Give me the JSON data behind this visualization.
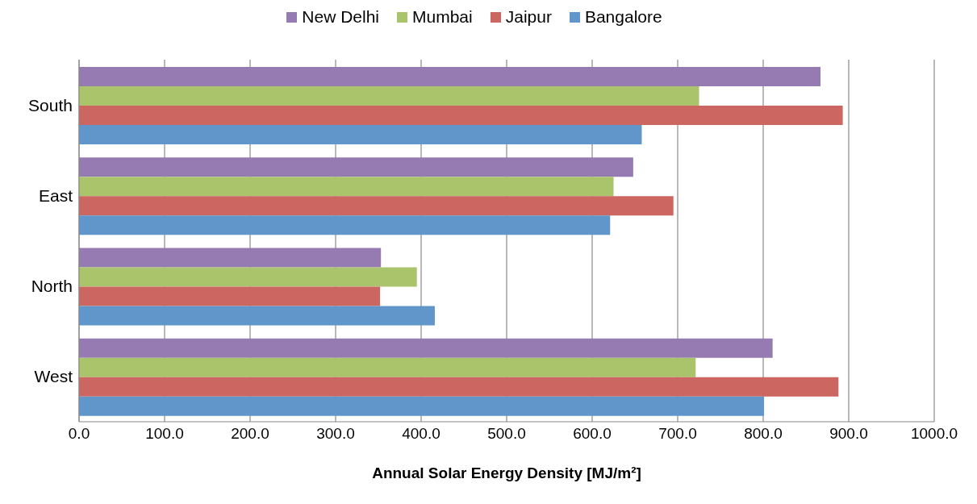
{
  "chart_data": {
    "type": "bar",
    "orientation": "horizontal",
    "xlabel": "Annual Solar Energy Density [MJ/m²]",
    "categories": [
      "South",
      "East",
      "North",
      "West"
    ],
    "series": [
      {
        "name": "New Delhi",
        "color": "#967bb2",
        "values": [
          867,
          648,
          353,
          811
        ]
      },
      {
        "name": "Mumbai",
        "color": "#aac46b",
        "values": [
          725,
          625,
          395,
          721
        ]
      },
      {
        "name": "Jaipur",
        "color": "#cc6660",
        "values": [
          893,
          695,
          352,
          888
        ]
      },
      {
        "name": "Bangalore",
        "color": "#6096c9",
        "values": [
          658,
          621,
          416,
          801
        ]
      }
    ],
    "xlim": [
      0,
      1000
    ],
    "xticks": [
      {
        "value": 0,
        "label": "0.0"
      },
      {
        "value": 100,
        "label": "100.0"
      },
      {
        "value": 200,
        "label": "200.0"
      },
      {
        "value": 300,
        "label": "300.0"
      },
      {
        "value": 400,
        "label": "400.0"
      },
      {
        "value": 500,
        "label": "500.0"
      },
      {
        "value": 600,
        "label": "600.0"
      },
      {
        "value": 700,
        "label": "700.0"
      },
      {
        "value": 800,
        "label": "800.0"
      },
      {
        "value": 900,
        "label": "900.0"
      },
      {
        "value": 1000,
        "label": "1000.0"
      }
    ],
    "grid": "x",
    "legend": "top"
  }
}
